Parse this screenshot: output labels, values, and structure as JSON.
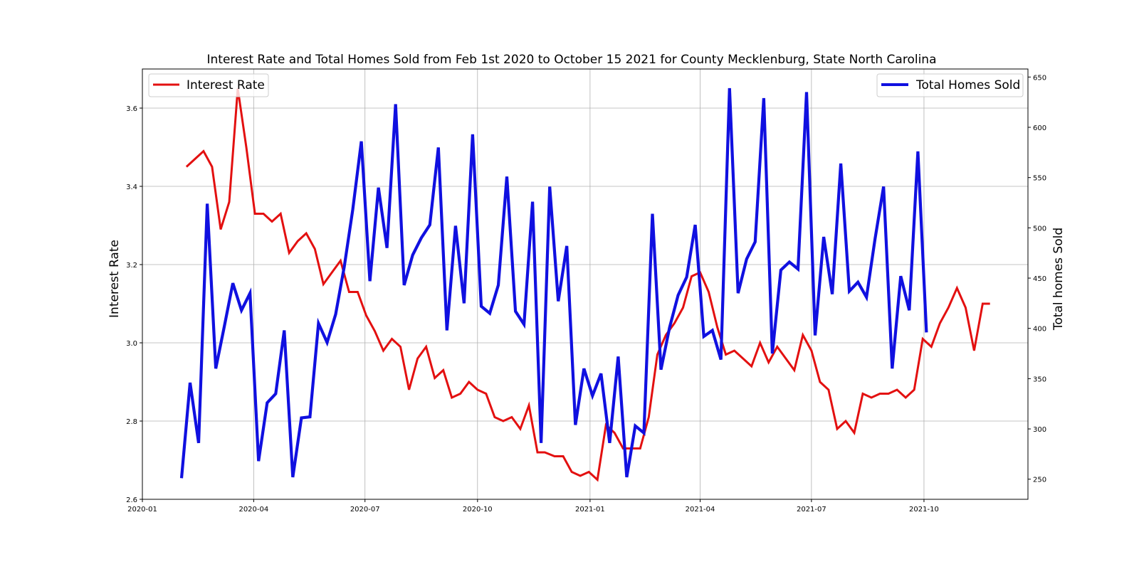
{
  "chart_data": {
    "type": "line",
    "title": "Interest Rate and Total Homes Sold from Feb 1st 2020 to October 15 2021 for County Mecklenburg, State North Carolina",
    "xlabel": "",
    "ylabel": "Interest Rate",
    "y2label": "Total homes Sold",
    "xlim": [
      "2020-01-01",
      "2021-12-25"
    ],
    "ylim": [
      2.6,
      3.7
    ],
    "y2lim": [
      230,
      658
    ],
    "grid": true,
    "x_ticks": [
      "2020-01",
      "2020-04",
      "2020-07",
      "2020-10",
      "2021-01",
      "2021-04",
      "2021-07",
      "2021-10"
    ],
    "y_ticks": [
      "2.6",
      "2.8",
      "3.0",
      "3.2",
      "3.4",
      "3.6"
    ],
    "y2_ticks": [
      "250",
      "300",
      "350",
      "400",
      "450",
      "500",
      "550",
      "600",
      "650"
    ],
    "legend_left_position": "upper left",
    "legend_right_position": "upper right",
    "colors": {
      "interest": "#e31010",
      "homes": "#1010e0"
    },
    "series": [
      {
        "name": "Interest Rate",
        "axis": "left",
        "x": [
          "2020-02-06",
          "2020-02-13",
          "2020-02-20",
          "2020-02-27",
          "2020-03-05",
          "2020-03-12",
          "2020-03-19",
          "2020-03-26",
          "2020-04-02",
          "2020-04-09",
          "2020-04-16",
          "2020-04-23",
          "2020-04-30",
          "2020-05-07",
          "2020-05-14",
          "2020-05-21",
          "2020-05-28",
          "2020-06-04",
          "2020-06-11",
          "2020-06-18",
          "2020-06-25",
          "2020-07-02",
          "2020-07-09",
          "2020-07-16",
          "2020-07-23",
          "2020-07-30",
          "2020-08-06",
          "2020-08-13",
          "2020-08-20",
          "2020-08-27",
          "2020-09-03",
          "2020-09-10",
          "2020-09-17",
          "2020-09-24",
          "2020-10-01",
          "2020-10-08",
          "2020-10-15",
          "2020-10-22",
          "2020-10-29",
          "2020-11-05",
          "2020-11-12",
          "2020-11-19",
          "2020-11-25",
          "2020-12-03",
          "2020-12-10",
          "2020-12-17",
          "2020-12-24",
          "2020-12-31",
          "2021-01-07",
          "2021-01-14",
          "2021-01-21",
          "2021-01-28",
          "2021-02-04",
          "2021-02-11",
          "2021-02-18",
          "2021-02-25",
          "2021-03-04",
          "2021-03-11",
          "2021-03-18",
          "2021-03-25",
          "2021-04-01",
          "2021-04-08",
          "2021-04-15",
          "2021-04-22",
          "2021-04-29",
          "2021-05-06",
          "2021-05-13",
          "2021-05-20",
          "2021-05-27",
          "2021-06-03",
          "2021-06-10",
          "2021-06-17",
          "2021-06-24",
          "2021-07-01",
          "2021-07-08",
          "2021-07-15",
          "2021-07-22",
          "2021-07-29",
          "2021-08-05",
          "2021-08-12",
          "2021-08-19",
          "2021-08-26",
          "2021-09-02",
          "2021-09-09",
          "2021-09-16",
          "2021-09-23",
          "2021-09-30",
          "2021-10-07",
          "2021-10-14",
          "2021-10-21",
          "2021-10-28",
          "2021-11-04",
          "2021-11-11",
          "2021-11-18",
          "2021-11-24"
        ],
        "values": [
          3.45,
          3.47,
          3.49,
          3.45,
          3.29,
          3.36,
          3.65,
          3.5,
          3.33,
          3.33,
          3.31,
          3.33,
          3.23,
          3.26,
          3.28,
          3.24,
          3.15,
          3.18,
          3.21,
          3.13,
          3.13,
          3.07,
          3.03,
          2.98,
          3.01,
          2.99,
          2.88,
          2.96,
          2.99,
          2.91,
          2.93,
          2.86,
          2.87,
          2.9,
          2.88,
          2.87,
          2.81,
          2.8,
          2.81,
          2.78,
          2.84,
          2.72,
          2.72,
          2.71,
          2.71,
          2.67,
          2.66,
          2.67,
          2.65,
          2.79,
          2.77,
          2.73,
          2.73,
          2.73,
          2.81,
          2.97,
          3.02,
          3.05,
          3.09,
          3.17,
          3.18,
          3.13,
          3.04,
          2.97,
          2.98,
          2.96,
          2.94,
          3.0,
          2.95,
          2.99,
          2.96,
          2.93,
          3.02,
          2.98,
          2.9,
          2.88,
          2.78,
          2.8,
          2.77,
          2.87,
          2.86,
          2.87,
          2.87,
          2.88,
          2.86,
          2.88,
          3.01,
          2.99,
          3.05,
          3.09,
          3.14,
          3.09,
          2.98,
          3.1,
          3.1
        ]
      },
      {
        "name": "Total Homes Sold",
        "axis": "right",
        "x": [
          "2020-02-02",
          "2020-02-09",
          "2020-02-16",
          "2020-02-23",
          "2020-03-01",
          "2020-03-08",
          "2020-03-15",
          "2020-03-22",
          "2020-03-29",
          "2020-04-05",
          "2020-04-12",
          "2020-04-19",
          "2020-04-26",
          "2020-05-03",
          "2020-05-10",
          "2020-05-17",
          "2020-05-24",
          "2020-05-31",
          "2020-06-07",
          "2020-06-14",
          "2020-06-21",
          "2020-06-28",
          "2020-07-05",
          "2020-07-12",
          "2020-07-19",
          "2020-07-26",
          "2020-08-02",
          "2020-08-09",
          "2020-08-16",
          "2020-08-23",
          "2020-08-30",
          "2020-09-06",
          "2020-09-13",
          "2020-09-20",
          "2020-09-27",
          "2020-10-04",
          "2020-10-11",
          "2020-10-18",
          "2020-10-25",
          "2020-11-01",
          "2020-11-08",
          "2020-11-15",
          "2020-11-22",
          "2020-11-29",
          "2020-12-06",
          "2020-12-13",
          "2020-12-20",
          "2020-12-27",
          "2021-01-03",
          "2021-01-10",
          "2021-01-17",
          "2021-01-24",
          "2021-01-31",
          "2021-02-07",
          "2021-02-14",
          "2021-02-21",
          "2021-02-28",
          "2021-03-07",
          "2021-03-14",
          "2021-03-21",
          "2021-03-28",
          "2021-04-04",
          "2021-04-11",
          "2021-04-18",
          "2021-04-25",
          "2021-05-02",
          "2021-05-09",
          "2021-05-16",
          "2021-05-23",
          "2021-05-30",
          "2021-06-06",
          "2021-06-13",
          "2021-06-20",
          "2021-06-27",
          "2021-07-04",
          "2021-07-11",
          "2021-07-18",
          "2021-07-25",
          "2021-08-01",
          "2021-08-08",
          "2021-08-15",
          "2021-08-22",
          "2021-08-29",
          "2021-09-05",
          "2021-09-12",
          "2021-09-19",
          "2021-09-26",
          "2021-10-03"
        ],
        "values": [
          251,
          346,
          286,
          524,
          360,
          402,
          445,
          418,
          435,
          268,
          326,
          335,
          398,
          252,
          311,
          312,
          405,
          386,
          414,
          461,
          518,
          586,
          447,
          540,
          480,
          623,
          443,
          473,
          490,
          503,
          580,
          398,
          502,
          425,
          593,
          422,
          415,
          443,
          551,
          417,
          404,
          526,
          286,
          541,
          427,
          482,
          304,
          360,
          333,
          355,
          286,
          372,
          252,
          303,
          296,
          514,
          359,
          401,
          433,
          451,
          503,
          392,
          398,
          369,
          639,
          435,
          469,
          486,
          629,
          375,
          458,
          466,
          459,
          635,
          393,
          491,
          434,
          564,
          437,
          446,
          431,
          489,
          541,
          360,
          452,
          418,
          576,
          396
        ]
      }
    ]
  }
}
